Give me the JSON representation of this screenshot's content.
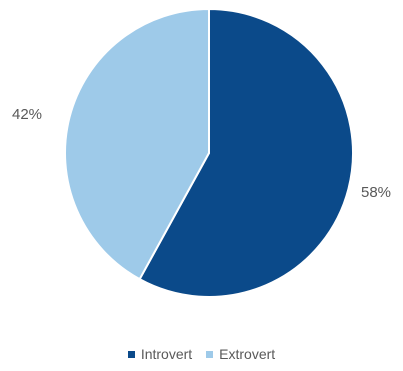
{
  "chart_data": {
    "type": "pie",
    "categories": [
      "Introvert",
      "Extrovert"
    ],
    "values": [
      58,
      42
    ],
    "data_labels": [
      "58%",
      "42%"
    ],
    "colors": [
      "#0b4a8a",
      "#9ecae9"
    ],
    "legend_position": "bottom",
    "start_angle": "12 o'clock, clockwise"
  }
}
